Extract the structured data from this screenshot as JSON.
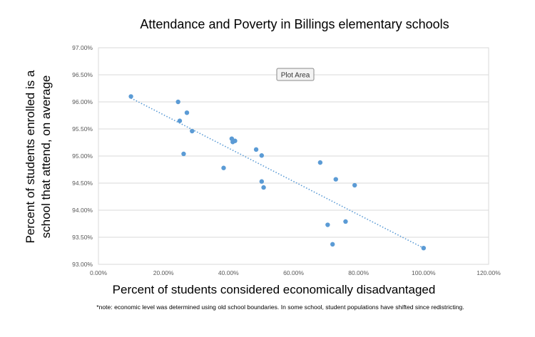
{
  "chart_data": {
    "type": "scatter",
    "title": "Attendance and Poverty in Billings elementary schools",
    "xlabel": "Percent of students considered economically disadvantaged",
    "ylabel_line1": "Percent of students enrolled is a",
    "ylabel_line2": "school that attend, on average",
    "xlim": [
      0,
      120
    ],
    "ylim": [
      93,
      97
    ],
    "x_ticks": [
      "0.00%",
      "20.00%",
      "40.00%",
      "60.00%",
      "80.00%",
      "100.00%",
      "120.00%"
    ],
    "y_ticks": [
      "97.00%",
      "96.50%",
      "96.00%",
      "95.50%",
      "95.00%",
      "94.50%",
      "94.00%",
      "93.50%",
      "93.00%"
    ],
    "grid": "horizontal",
    "tooltip": "Plot Area",
    "trendline": {
      "style": "dotted linear",
      "x": [
        10,
        100
      ],
      "y": [
        96.07,
        93.3
      ]
    },
    "points": [
      {
        "x": 10,
        "y": 96.1
      },
      {
        "x": 24.5,
        "y": 96.0
      },
      {
        "x": 27.2,
        "y": 95.8
      },
      {
        "x": 25,
        "y": 95.65
      },
      {
        "x": 28.8,
        "y": 95.46
      },
      {
        "x": 41,
        "y": 95.32
      },
      {
        "x": 41.3,
        "y": 95.26
      },
      {
        "x": 42,
        "y": 95.28
      },
      {
        "x": 48.5,
        "y": 95.12
      },
      {
        "x": 50.2,
        "y": 95.01
      },
      {
        "x": 26.2,
        "y": 95.04
      },
      {
        "x": 38.5,
        "y": 94.78
      },
      {
        "x": 50.2,
        "y": 94.53
      },
      {
        "x": 50.8,
        "y": 94.42
      },
      {
        "x": 68.2,
        "y": 94.88
      },
      {
        "x": 73,
        "y": 94.57
      },
      {
        "x": 78.8,
        "y": 94.46
      },
      {
        "x": 70.5,
        "y": 93.73
      },
      {
        "x": 76,
        "y": 93.79
      },
      {
        "x": 72,
        "y": 93.37
      },
      {
        "x": 100,
        "y": 93.3
      }
    ],
    "colors": {
      "marker": "#5b9bd5",
      "trend": "#5b9bd5",
      "grid": "#d9d9d9",
      "axis_text": "#595959"
    }
  },
  "note": "*note: economic level was determined using old school boundaries. In some school, student populations have shifted since redistricting."
}
